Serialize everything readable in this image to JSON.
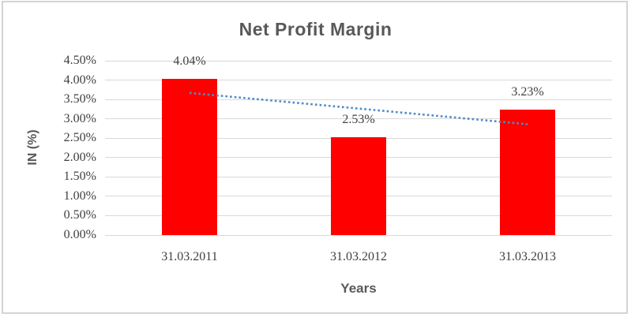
{
  "chart": {
    "title": "Net Profit Margin",
    "y_axis_title": "IN (%)",
    "x_axis_title": "Years"
  },
  "chart_data": {
    "type": "bar",
    "title": "Net Profit Margin",
    "xlabel": "Years",
    "ylabel": "IN (%)",
    "categories": [
      "31.03.2011",
      "31.03.2012",
      "31.03.2013"
    ],
    "values": [
      4.04,
      2.53,
      3.23
    ],
    "data_labels": [
      "4.04%",
      "2.53%",
      "3.23%"
    ],
    "y_ticks": [
      "4.50%",
      "4.00%",
      "3.50%",
      "3.00%",
      "2.50%",
      "2.00%",
      "1.50%",
      "1.00%",
      "0.50%",
      "0.00%"
    ],
    "ylim": [
      0,
      4.5
    ],
    "grid": true,
    "legend": "none",
    "bar_color": "#ff0000",
    "gridline_color": "#d9d9d9",
    "frame_color": "#d4d4d4",
    "title_color": "#595959",
    "label_color": "#3f3f3f",
    "trendline": {
      "type": "linear",
      "style": "dotted",
      "color": "#4e8bc8",
      "start_value": 3.67,
      "end_value": 2.86
    }
  }
}
